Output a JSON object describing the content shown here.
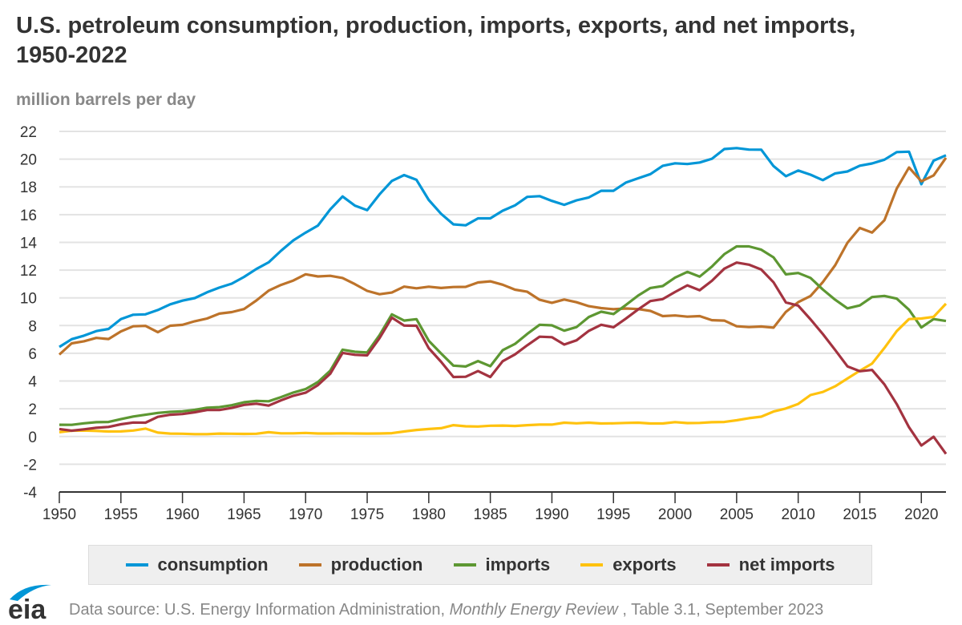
{
  "title": "U.S. petroleum consumption, production, imports, exports, and net imports, 1950-2022",
  "units": "million barrels per day",
  "footer": {
    "prefix": "Data source: U.S. Energy Information Administration, ",
    "publication": "Monthly Energy Review",
    "suffix": " , Table 3.1, September 2023"
  },
  "logo_text": "eia",
  "chart_data": {
    "type": "line",
    "title": "U.S. petroleum consumption, production, imports, exports, and net imports, 1950-2022",
    "ylabel": "million barrels per day",
    "xlabel": "",
    "xlim": [
      1950,
      2022
    ],
    "ylim": [
      -4,
      22
    ],
    "grid": true,
    "legend": "bottom",
    "x_ticks": [
      "1950",
      "1955",
      "1960",
      "1965",
      "1970",
      "1975",
      "1980",
      "1985",
      "1990",
      "1995",
      "2000",
      "2005",
      "2010",
      "2015",
      "2020"
    ],
    "y_ticks": [
      "-4",
      "-2",
      "0",
      "2",
      "4",
      "6",
      "8",
      "10",
      "12",
      "14",
      "16",
      "18",
      "20",
      "22"
    ],
    "x_start": 1950,
    "series": [
      {
        "name": "consumption",
        "color": "#0096d7",
        "values": [
          6.46,
          7.02,
          7.27,
          7.6,
          7.76,
          8.46,
          8.78,
          8.81,
          9.12,
          9.53,
          9.8,
          9.98,
          10.4,
          10.74,
          11.02,
          11.51,
          12.08,
          12.56,
          13.39,
          14.14,
          14.7,
          15.21,
          16.37,
          17.31,
          16.65,
          16.32,
          17.46,
          18.43,
          18.85,
          18.51,
          17.06,
          16.06,
          15.3,
          15.23,
          15.73,
          15.73,
          16.28,
          16.67,
          17.28,
          17.33,
          16.99,
          16.71,
          17.03,
          17.24,
          17.72,
          17.72,
          18.31,
          18.62,
          18.92,
          19.52,
          19.7,
          19.65,
          19.76,
          20.03,
          20.73,
          20.8,
          20.69,
          20.68,
          19.5,
          18.77,
          19.18,
          18.88,
          18.49,
          18.97,
          19.11,
          19.53,
          19.69,
          19.96,
          20.51,
          20.54,
          18.19,
          19.89,
          20.28
        ]
      },
      {
        "name": "production",
        "color": "#bd732a",
        "values": [
          5.91,
          6.72,
          6.87,
          7.11,
          7.03,
          7.58,
          7.95,
          7.98,
          7.52,
          7.99,
          8.05,
          8.31,
          8.51,
          8.86,
          8.97,
          9.19,
          9.81,
          10.52,
          10.93,
          11.25,
          11.7,
          11.54,
          11.59,
          11.43,
          10.99,
          10.5,
          10.26,
          10.38,
          10.81,
          10.69,
          10.8,
          10.71,
          10.78,
          10.79,
          11.11,
          11.19,
          10.95,
          10.59,
          10.44,
          9.86,
          9.64,
          9.88,
          9.68,
          9.4,
          9.26,
          9.18,
          9.23,
          9.19,
          9.06,
          8.68,
          8.73,
          8.64,
          8.68,
          8.39,
          8.36,
          7.95,
          7.89,
          7.93,
          7.85,
          8.99,
          9.69,
          10.13,
          11.13,
          12.35,
          13.97,
          15.04,
          14.71,
          15.59,
          17.88,
          19.4,
          18.4,
          18.83,
          20.1
        ]
      },
      {
        "name": "imports",
        "color": "#5d9732",
        "values": [
          0.85,
          0.84,
          0.95,
          1.03,
          1.05,
          1.25,
          1.44,
          1.57,
          1.7,
          1.78,
          1.82,
          1.92,
          2.08,
          2.12,
          2.26,
          2.47,
          2.57,
          2.54,
          2.84,
          3.17,
          3.42,
          3.93,
          4.74,
          6.26,
          6.11,
          6.06,
          7.31,
          8.81,
          8.36,
          8.46,
          6.91,
          5.99,
          5.11,
          5.05,
          5.44,
          5.07,
          6.22,
          6.68,
          7.4,
          8.06,
          8.02,
          7.63,
          7.89,
          8.62,
          9.0,
          8.83,
          9.48,
          10.16,
          10.71,
          10.85,
          11.46,
          11.87,
          11.53,
          12.26,
          13.15,
          13.71,
          13.71,
          13.47,
          12.92,
          11.69,
          11.79,
          11.44,
          10.6,
          9.86,
          9.24,
          9.45,
          10.06,
          10.14,
          9.94,
          9.14,
          7.86,
          8.47,
          8.33
        ]
      },
      {
        "name": "exports",
        "color": "#ffc20e",
        "values": [
          0.31,
          0.42,
          0.43,
          0.4,
          0.36,
          0.37,
          0.43,
          0.57,
          0.28,
          0.21,
          0.2,
          0.17,
          0.17,
          0.21,
          0.2,
          0.19,
          0.2,
          0.31,
          0.23,
          0.23,
          0.26,
          0.22,
          0.22,
          0.23,
          0.22,
          0.21,
          0.22,
          0.24,
          0.36,
          0.47,
          0.54,
          0.6,
          0.82,
          0.74,
          0.72,
          0.78,
          0.79,
          0.76,
          0.82,
          0.86,
          0.86,
          1.0,
          0.95,
          1.0,
          0.94,
          0.95,
          0.98,
          1.0,
          0.94,
          0.94,
          1.04,
          0.97,
          0.98,
          1.03,
          1.05,
          1.17,
          1.32,
          1.43,
          1.8,
          2.02,
          2.35,
          2.99,
          3.21,
          3.62,
          4.18,
          4.74,
          5.26,
          6.38,
          7.6,
          8.47,
          8.51,
          8.63,
          9.58
        ]
      },
      {
        "name": "net imports",
        "color": "#a33340",
        "values": [
          0.54,
          0.42,
          0.52,
          0.63,
          0.69,
          0.88,
          1.01,
          1.0,
          1.42,
          1.57,
          1.62,
          1.75,
          1.91,
          1.91,
          2.06,
          2.28,
          2.37,
          2.23,
          2.61,
          2.94,
          3.16,
          3.71,
          4.52,
          6.03,
          5.89,
          5.85,
          7.09,
          8.57,
          8.0,
          7.99,
          6.37,
          5.39,
          4.29,
          4.31,
          4.72,
          4.29,
          5.43,
          5.92,
          6.58,
          7.2,
          7.16,
          6.63,
          6.94,
          7.62,
          8.06,
          7.88,
          8.5,
          9.16,
          9.77,
          9.91,
          10.42,
          10.9,
          10.55,
          11.23,
          12.1,
          12.54,
          12.39,
          12.04,
          11.12,
          9.67,
          9.44,
          8.45,
          7.39,
          6.24,
          5.06,
          4.71,
          4.8,
          3.76,
          2.34,
          0.67,
          -0.65,
          -0.02,
          -1.25
        ]
      }
    ]
  }
}
